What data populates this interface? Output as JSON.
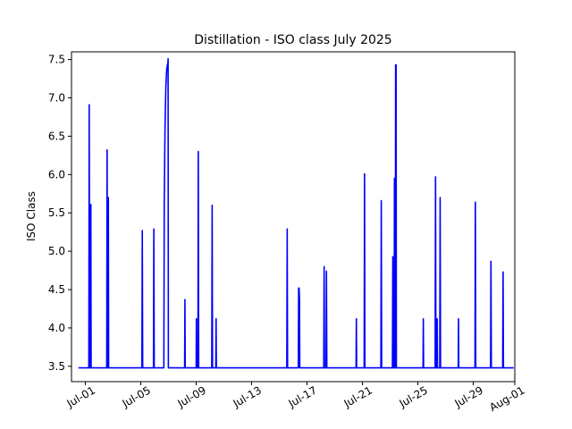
{
  "chart_data": {
    "type": "line",
    "title": "Distillation - ISO class July 2025",
    "ylabel": "ISO Class",
    "xlabel": "",
    "ylim": [
      3.3,
      7.6
    ],
    "xlim": [
      "2025-06-30",
      "2025-08-01"
    ],
    "y_ticks": [
      "3.5",
      "4.0",
      "4.5",
      "5.0",
      "5.5",
      "6.0",
      "6.5",
      "7.0",
      "7.5"
    ],
    "x_ticks": [
      "Jul-01",
      "Jul-05",
      "Jul-09",
      "Jul-13",
      "Jul-17",
      "Jul-21",
      "Jul-25",
      "Jul-29",
      "Aug-01"
    ],
    "grid": false,
    "series": [
      {
        "color": "#0000ff",
        "points": [
          [
            "2025-06-30 12:00",
            3.48
          ],
          [
            "2025-07-01 06:00",
            3.48
          ],
          [
            "2025-07-01 06:40",
            6.91
          ],
          [
            "2025-07-01 07:20",
            3.48
          ],
          [
            "2025-07-01 09:00",
            3.48
          ],
          [
            "2025-07-01 09:30",
            5.61
          ],
          [
            "2025-07-01 10:00",
            3.48
          ],
          [
            "2025-07-02 13:00",
            3.48
          ],
          [
            "2025-07-02 13:40",
            6.32
          ],
          [
            "2025-07-02 14:20",
            3.48
          ],
          [
            "2025-07-02 15:20",
            3.48
          ],
          [
            "2025-07-02 15:50",
            5.7
          ],
          [
            "2025-07-02 16:20",
            3.48
          ],
          [
            "2025-07-05 02:00",
            3.48
          ],
          [
            "2025-07-05 02:40",
            5.27
          ],
          [
            "2025-07-05 03:20",
            3.48
          ],
          [
            "2025-07-05 22:00",
            3.48
          ],
          [
            "2025-07-05 22:40",
            5.29
          ],
          [
            "2025-07-05 23:20",
            3.48
          ],
          [
            "2025-07-06 16:00",
            3.48
          ],
          [
            "2025-07-06 16:40",
            5.6
          ],
          [
            "2025-07-06 18:00",
            6.6
          ],
          [
            "2025-07-06 19:30",
            7.15
          ],
          [
            "2025-07-06 21:00",
            7.38
          ],
          [
            "2025-07-06 22:30",
            7.44
          ],
          [
            "2025-07-06 23:00",
            7.44
          ],
          [
            "2025-07-06 23:20",
            7.51
          ],
          [
            "2025-07-06 23:50",
            3.48
          ],
          [
            "2025-07-08 04:00",
            3.48
          ],
          [
            "2025-07-08 04:30",
            4.37
          ],
          [
            "2025-07-08 05:00",
            3.48
          ],
          [
            "2025-07-09 00:00",
            3.48
          ],
          [
            "2025-07-09 00:20",
            4.12
          ],
          [
            "2025-07-09 00:40",
            3.48
          ],
          [
            "2025-07-09 03:00",
            3.48
          ],
          [
            "2025-07-09 03:40",
            6.3
          ],
          [
            "2025-07-09 04:20",
            3.48
          ],
          [
            "2025-07-10 03:00",
            3.48
          ],
          [
            "2025-07-10 03:40",
            5.6
          ],
          [
            "2025-07-10 04:20",
            3.48
          ],
          [
            "2025-07-10 10:00",
            3.48
          ],
          [
            "2025-07-10 10:30",
            4.12
          ],
          [
            "2025-07-10 11:00",
            3.48
          ],
          [
            "2025-07-15 13:00",
            3.48
          ],
          [
            "2025-07-15 13:40",
            5.29
          ],
          [
            "2025-07-15 14:20",
            3.48
          ],
          [
            "2025-07-16 09:00",
            3.48
          ],
          [
            "2025-07-16 09:30",
            4.52
          ],
          [
            "2025-07-16 10:20",
            4.52
          ],
          [
            "2025-07-16 11:00",
            4.37
          ],
          [
            "2025-07-16 11:30",
            3.48
          ],
          [
            "2025-07-18 05:00",
            3.48
          ],
          [
            "2025-07-18 05:40",
            4.8
          ],
          [
            "2025-07-18 06:20",
            3.48
          ],
          [
            "2025-07-18 09:00",
            3.48
          ],
          [
            "2025-07-18 09:40",
            4.74
          ],
          [
            "2025-07-18 10:20",
            3.48
          ],
          [
            "2025-07-20 13:00",
            3.48
          ],
          [
            "2025-07-20 13:30",
            4.12
          ],
          [
            "2025-07-20 14:00",
            3.48
          ],
          [
            "2025-07-21 03:00",
            3.48
          ],
          [
            "2025-07-21 03:40",
            6.01
          ],
          [
            "2025-07-21 04:20",
            3.48
          ],
          [
            "2025-07-22 08:00",
            3.48
          ],
          [
            "2025-07-22 08:40",
            5.66
          ],
          [
            "2025-07-22 09:20",
            3.48
          ],
          [
            "2025-07-23 04:00",
            3.48
          ],
          [
            "2025-07-23 04:40",
            4.93
          ],
          [
            "2025-07-23 05:20",
            3.48
          ],
          [
            "2025-07-23 07:00",
            3.48
          ],
          [
            "2025-07-23 07:30",
            5.95
          ],
          [
            "2025-07-23 08:00",
            3.48
          ],
          [
            "2025-07-23 09:00",
            3.48
          ],
          [
            "2025-07-23 09:30",
            7.43
          ],
          [
            "2025-07-23 10:20",
            7.43
          ],
          [
            "2025-07-23 10:50",
            3.48
          ],
          [
            "2025-07-25 09:00",
            3.48
          ],
          [
            "2025-07-25 09:30",
            4.12
          ],
          [
            "2025-07-25 10:00",
            3.48
          ],
          [
            "2025-07-26 06:00",
            3.48
          ],
          [
            "2025-07-26 06:40",
            5.97
          ],
          [
            "2025-07-26 07:20",
            3.48
          ],
          [
            "2025-07-26 09:00",
            3.48
          ],
          [
            "2025-07-26 09:30",
            4.12
          ],
          [
            "2025-07-26 10:00",
            3.48
          ],
          [
            "2025-07-26 14:00",
            3.48
          ],
          [
            "2025-07-26 14:40",
            5.7
          ],
          [
            "2025-07-26 15:20",
            3.48
          ],
          [
            "2025-07-27 22:00",
            3.48
          ],
          [
            "2025-07-27 22:30",
            4.12
          ],
          [
            "2025-07-27 23:00",
            3.48
          ],
          [
            "2025-07-29 03:00",
            3.48
          ],
          [
            "2025-07-29 03:40",
            5.64
          ],
          [
            "2025-07-29 04:20",
            3.48
          ],
          [
            "2025-07-30 06:00",
            3.48
          ],
          [
            "2025-07-30 06:40",
            4.87
          ],
          [
            "2025-07-30 07:20",
            3.48
          ],
          [
            "2025-07-31 03:00",
            3.48
          ],
          [
            "2025-07-31 03:40",
            4.73
          ],
          [
            "2025-07-31 04:20",
            3.48
          ],
          [
            "2025-07-31 22:00",
            3.48
          ]
        ]
      }
    ]
  }
}
